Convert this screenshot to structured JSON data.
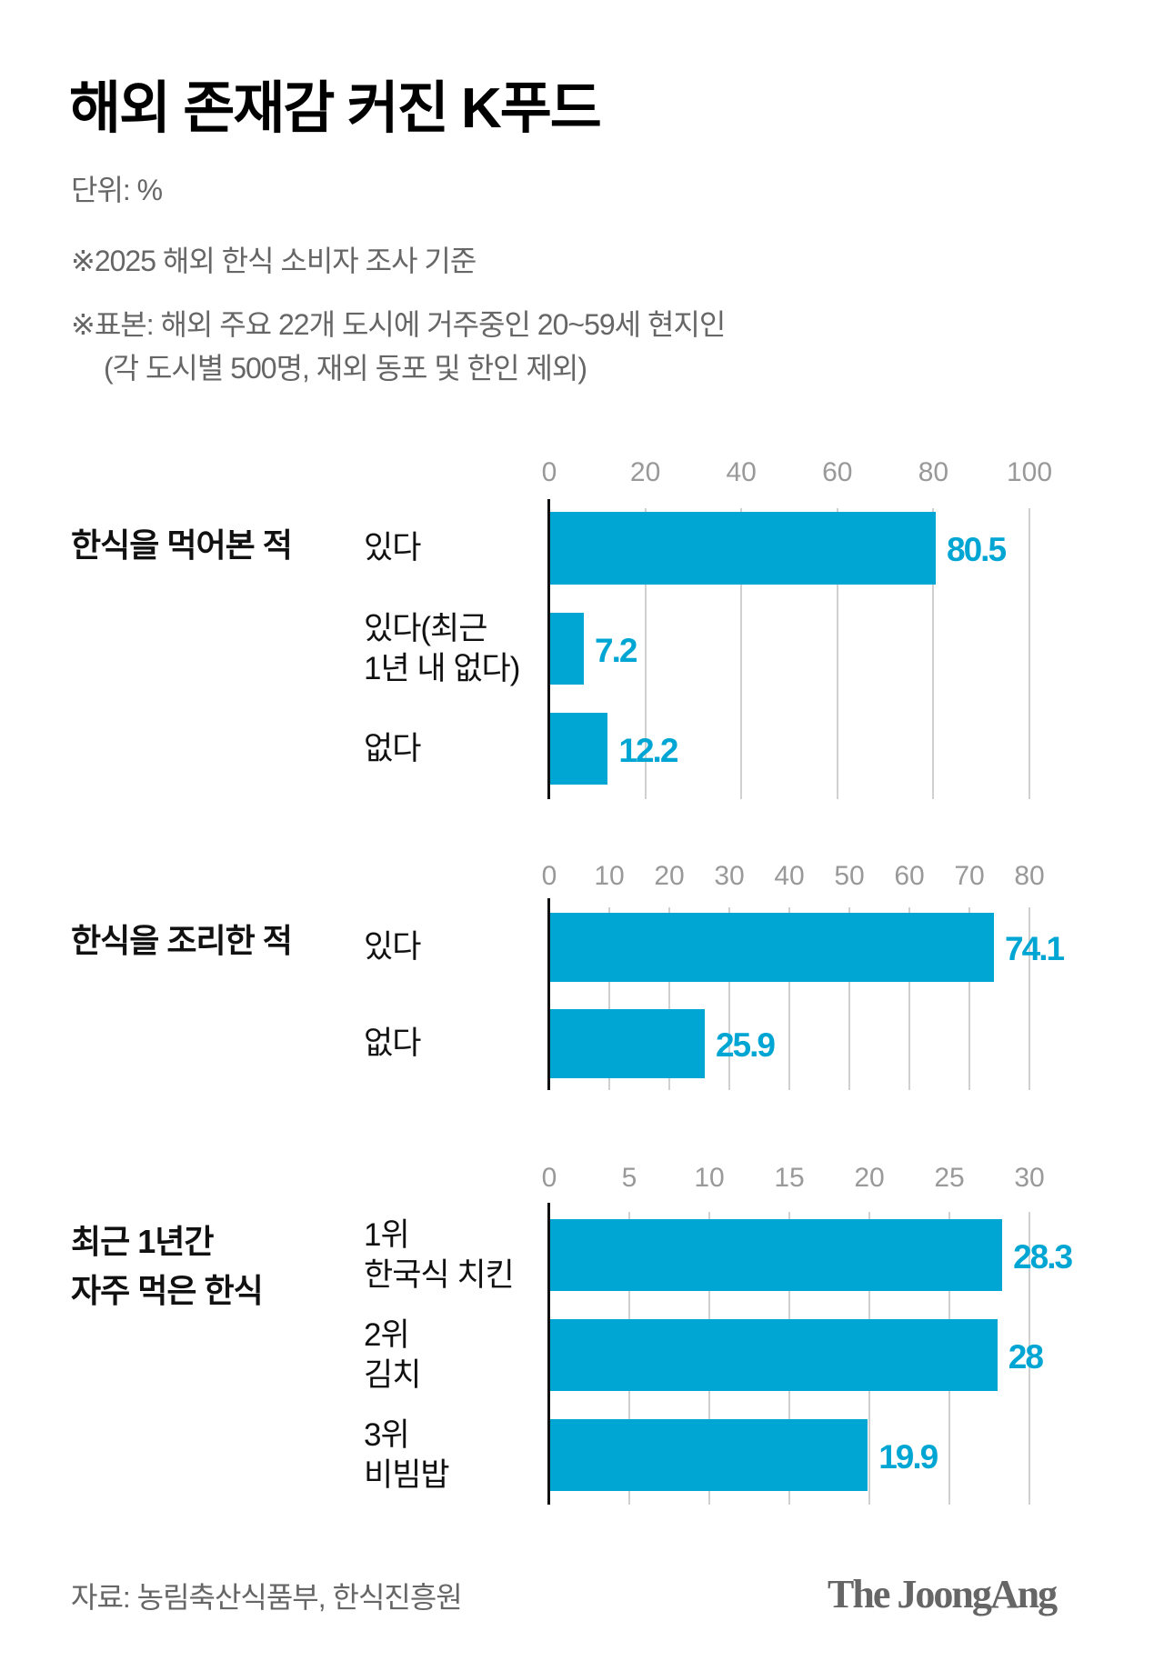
{
  "header": {
    "title": "해외 존재감 커진 K푸드",
    "unit": "단위: %",
    "notes": [
      "※2025 해외 한식 소비자 조사 기준",
      "※표본: 해외 주요 22개 도시에 거주중인 20~59세 현지인",
      "(각 도시별 500명, 재외 동포 및 한인 제외)"
    ]
  },
  "chart_data": [
    {
      "type": "bar",
      "orientation": "horizontal",
      "title": "한식을 먹어본 적",
      "categories": [
        [
          "있다"
        ],
        [
          "있다(최근",
          "1년 내 없다)"
        ],
        [
          "없다"
        ]
      ],
      "values": [
        80.5,
        7.2,
        12.2
      ],
      "value_labels": [
        "80.5",
        "7.2",
        "12.2"
      ],
      "xlim": [
        0,
        100
      ],
      "ticks": [
        0,
        20,
        40,
        60,
        80,
        100
      ],
      "tick_labels": [
        "0",
        "20",
        "40",
        "60",
        "80",
        "100"
      ],
      "grid": true
    },
    {
      "type": "bar",
      "orientation": "horizontal",
      "title": "한식을 조리한 적",
      "categories": [
        [
          "있다"
        ],
        [
          "없다"
        ]
      ],
      "values": [
        74.1,
        25.9
      ],
      "value_labels": [
        "74.1",
        "25.9"
      ],
      "xlim": [
        0,
        80
      ],
      "ticks": [
        0,
        10,
        20,
        30,
        40,
        50,
        60,
        70,
        80
      ],
      "tick_labels": [
        "0",
        "10",
        "20",
        "30",
        "40",
        "50",
        "60",
        "70",
        "80"
      ],
      "grid": true
    },
    {
      "type": "bar",
      "orientation": "horizontal",
      "title": "최근 1년간 자주 먹은 한식",
      "title_lines": [
        "최근 1년간",
        "자주 먹은 한식"
      ],
      "categories": [
        [
          "1위",
          "한국식 치킨"
        ],
        [
          "2위",
          "김치"
        ],
        [
          "3위",
          "비빔밥"
        ]
      ],
      "values": [
        28.3,
        28,
        19.9
      ],
      "value_labels": [
        "28.3",
        "28",
        "19.9"
      ],
      "xlim": [
        0,
        30
      ],
      "ticks": [
        0,
        5,
        10,
        15,
        20,
        25,
        30
      ],
      "tick_labels": [
        "0",
        "5",
        "10",
        "15",
        "20",
        "25",
        "30"
      ],
      "grid": true
    }
  ],
  "colors": {
    "bar": "#00a6d3",
    "value_label": "#00a6d3",
    "grid": "#d0d0d0",
    "axis": "#111111"
  },
  "footer": {
    "source": "자료: 농림축산식품부, 한식진흥원",
    "logo": "The JoongAng"
  }
}
